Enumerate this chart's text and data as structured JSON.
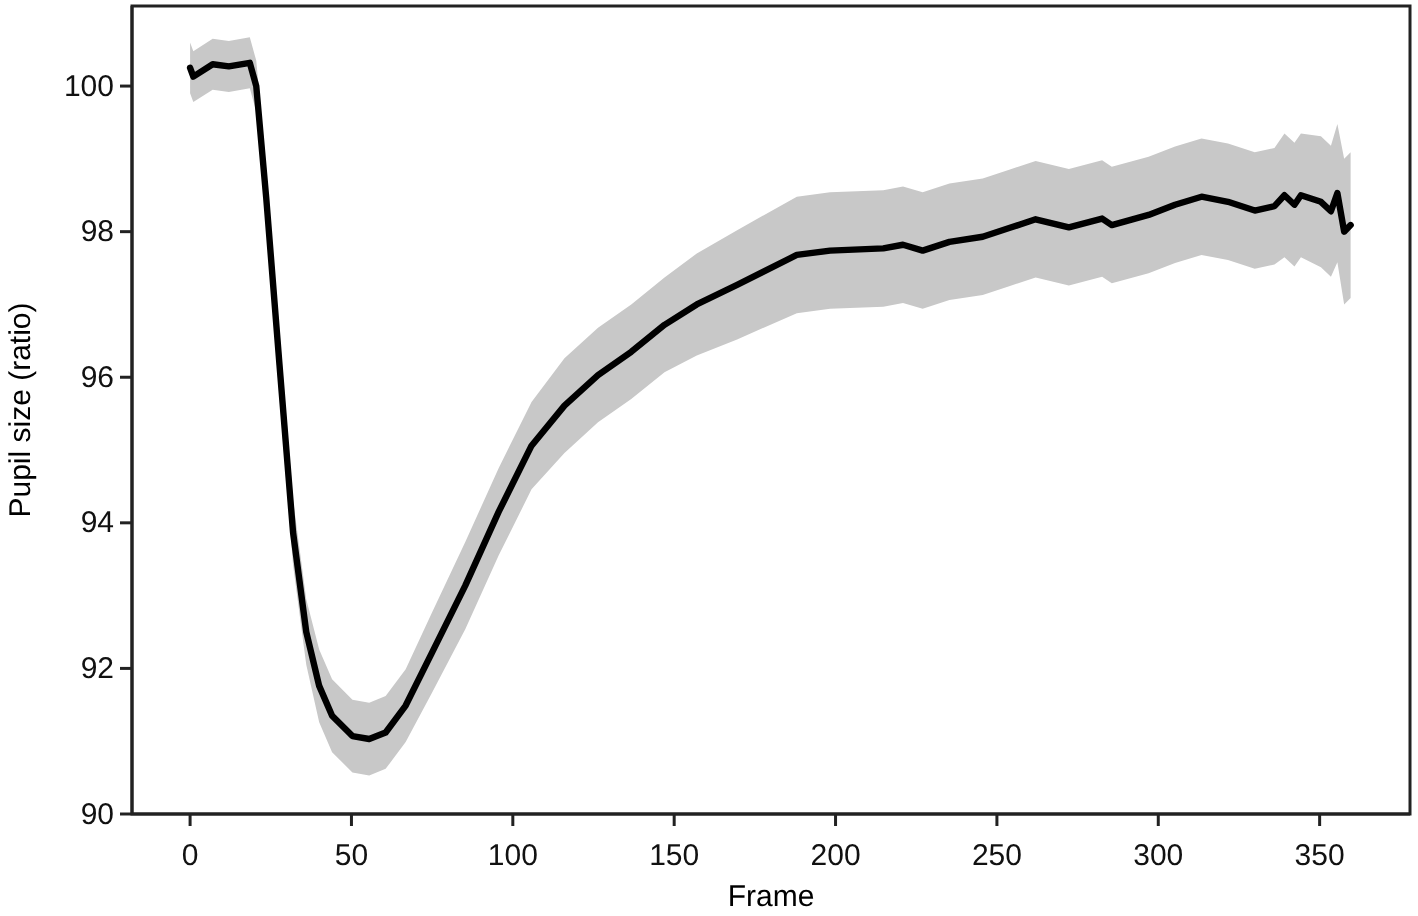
{
  "chart_data": {
    "type": "line",
    "xlabel": "Frame",
    "ylabel": "Pupil size (ratio)",
    "xlim": [
      -18,
      378
    ],
    "xticks": [
      0,
      50,
      100,
      150,
      200,
      250,
      300,
      350
    ],
    "ylim": [
      90,
      101.1
    ],
    "yticks": [
      90,
      92,
      94,
      96,
      98,
      100
    ],
    "grid": false,
    "line_style": "solid",
    "marker": "none",
    "series": [
      {
        "color": "#000000",
        "x": [
          0,
          1,
          7,
          12,
          18.5,
          20.5,
          23.6,
          27.7,
          31.9,
          36,
          40,
          44,
          50.3,
          55.5,
          60.6,
          66.8,
          75,
          85.3,
          95.6,
          105.8,
          116,
          126.4,
          136.7,
          147,
          157,
          169.5,
          188,
          198.3,
          214.8,
          220.9,
          227,
          235.3,
          245.6,
          253.8,
          262,
          272.3,
          282.6,
          285.6,
          297,
          305.2,
          313.4,
          321.6,
          329.9,
          336,
          339.1,
          342.2,
          344.2,
          350.4,
          353.5,
          355.5,
          357.6,
          359.6
        ],
        "values": [
          100.25,
          100.13,
          100.3,
          100.27,
          100.32,
          100.0,
          98.46,
          96.17,
          93.87,
          92.5,
          91.76,
          91.35,
          91.07,
          91.03,
          91.12,
          91.49,
          92.22,
          93.14,
          94.15,
          95.06,
          95.61,
          96.03,
          96.35,
          96.72,
          97.0,
          97.27,
          97.68,
          97.74,
          97.77,
          97.82,
          97.74,
          97.86,
          97.93,
          98.05,
          98.17,
          98.06,
          98.18,
          98.09,
          98.23,
          98.37,
          98.48,
          98.41,
          98.29,
          98.35,
          98.5,
          98.37,
          98.5,
          98.41,
          98.28,
          98.53,
          98.0,
          98.09
        ],
        "lower": [
          99.9,
          99.78,
          99.95,
          99.92,
          99.97,
          99.65,
          98.06,
          95.72,
          93.42,
          92.05,
          91.26,
          90.85,
          90.57,
          90.53,
          90.62,
          90.99,
          91.67,
          92.54,
          93.55,
          94.46,
          94.96,
          95.38,
          95.7,
          96.07,
          96.3,
          96.52,
          96.88,
          96.94,
          96.97,
          97.02,
          96.94,
          97.06,
          97.13,
          97.25,
          97.37,
          97.26,
          97.38,
          97.29,
          97.43,
          97.57,
          97.68,
          97.61,
          97.49,
          97.55,
          97.65,
          97.52,
          97.65,
          97.51,
          97.38,
          97.58,
          97.0,
          97.09
        ],
        "upper": [
          100.6,
          100.48,
          100.65,
          100.62,
          100.67,
          100.35,
          98.86,
          96.62,
          94.32,
          92.95,
          92.26,
          91.85,
          91.57,
          91.53,
          91.62,
          91.99,
          92.77,
          93.74,
          94.75,
          95.66,
          96.26,
          96.68,
          97.0,
          97.37,
          97.7,
          98.02,
          98.48,
          98.54,
          98.57,
          98.62,
          98.54,
          98.66,
          98.73,
          98.85,
          98.97,
          98.86,
          98.98,
          98.89,
          99.03,
          99.17,
          99.28,
          99.21,
          99.09,
          99.15,
          99.35,
          99.22,
          99.35,
          99.31,
          99.18,
          99.48,
          99.0,
          99.09
        ]
      }
    ]
  }
}
